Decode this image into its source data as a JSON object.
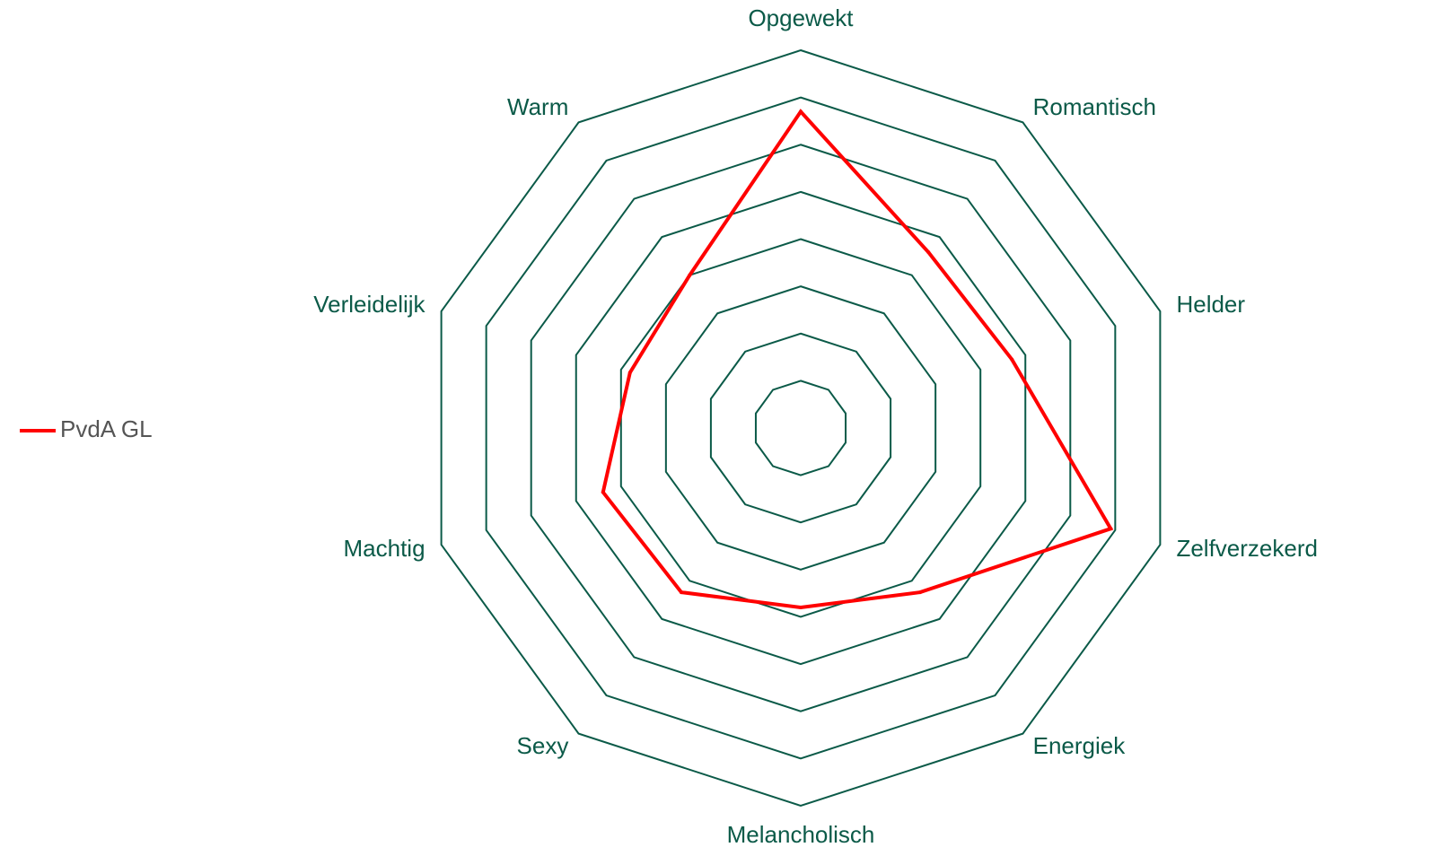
{
  "chart_data": {
    "type": "radar",
    "axes": [
      "Opgewekt",
      "Romantisch",
      "Helder",
      "Zelfverzekerd",
      "Energiek",
      "Melancholisch",
      "Sexy",
      "Machtig",
      "Verleidelijk",
      "Warm"
    ],
    "range": [
      0,
      8
    ],
    "rings": 8,
    "grid": true,
    "legend_position": "left",
    "series": [
      {
        "name": "PvdA GL",
        "color": "#ff0000",
        "values": [
          6.7,
          4.6,
          4.7,
          6.9,
          4.3,
          3.8,
          4.3,
          4.4,
          3.8,
          4.0
        ]
      }
    ],
    "grid_color": "#0b5a48"
  }
}
